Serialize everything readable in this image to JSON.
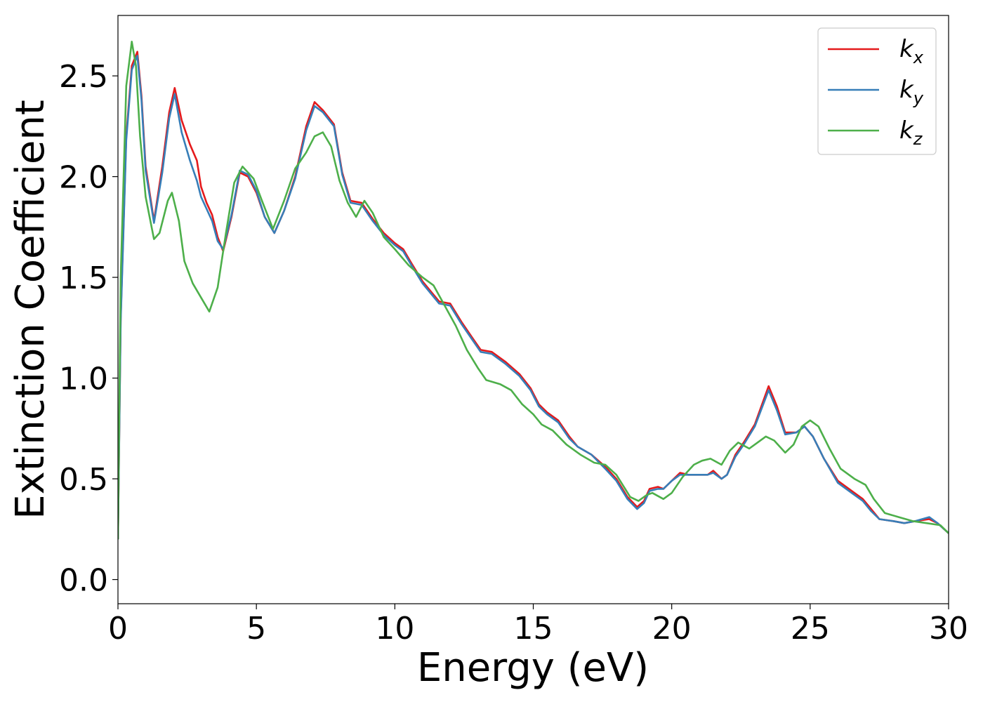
{
  "chart_data": {
    "type": "line",
    "xlabel": "Energy (eV)",
    "ylabel": "Extinction Coefficient",
    "xlim": [
      0,
      30
    ],
    "ylim": [
      -0.12,
      2.8
    ],
    "xticks": [
      "0",
      "5",
      "10",
      "15",
      "20",
      "25",
      "30"
    ],
    "yticks": [
      "0.0",
      "0.5",
      "1.0",
      "1.5",
      "2.0",
      "2.5"
    ],
    "grid": false,
    "legend_position": "top-right",
    "series": [
      {
        "name": "k",
        "subscript": "x",
        "color": "#e41a1c",
        "points": [
          [
            0,
            0.2
          ],
          [
            0.1,
            1.3
          ],
          [
            0.3,
            2.2
          ],
          [
            0.5,
            2.55
          ],
          [
            0.7,
            2.62
          ],
          [
            0.85,
            2.4
          ],
          [
            1.0,
            2.05
          ],
          [
            1.3,
            1.78
          ],
          [
            1.6,
            2.05
          ],
          [
            1.85,
            2.32
          ],
          [
            2.05,
            2.44
          ],
          [
            2.3,
            2.28
          ],
          [
            2.6,
            2.16
          ],
          [
            2.85,
            2.08
          ],
          [
            3.0,
            1.95
          ],
          [
            3.2,
            1.87
          ],
          [
            3.4,
            1.81
          ],
          [
            3.6,
            1.7
          ],
          [
            3.8,
            1.63
          ],
          [
            4.1,
            1.8
          ],
          [
            4.4,
            2.02
          ],
          [
            4.7,
            2.0
          ],
          [
            5.0,
            1.92
          ],
          [
            5.3,
            1.8
          ],
          [
            5.65,
            1.72
          ],
          [
            6.0,
            1.83
          ],
          [
            6.4,
            2.0
          ],
          [
            6.8,
            2.25
          ],
          [
            7.1,
            2.37
          ],
          [
            7.4,
            2.33
          ],
          [
            7.8,
            2.26
          ],
          [
            8.1,
            2.02
          ],
          [
            8.4,
            1.88
          ],
          [
            8.8,
            1.87
          ],
          [
            9.2,
            1.79
          ],
          [
            9.6,
            1.72
          ],
          [
            10.0,
            1.67
          ],
          [
            10.3,
            1.64
          ],
          [
            10.6,
            1.57
          ],
          [
            11.0,
            1.48
          ],
          [
            11.3,
            1.43
          ],
          [
            11.6,
            1.38
          ],
          [
            12.0,
            1.37
          ],
          [
            12.4,
            1.28
          ],
          [
            12.8,
            1.2
          ],
          [
            13.1,
            1.14
          ],
          [
            13.5,
            1.13
          ],
          [
            14.0,
            1.08
          ],
          [
            14.5,
            1.02
          ],
          [
            14.9,
            0.95
          ],
          [
            15.2,
            0.87
          ],
          [
            15.5,
            0.83
          ],
          [
            15.9,
            0.79
          ],
          [
            16.3,
            0.71
          ],
          [
            16.6,
            0.66
          ],
          [
            17.1,
            0.62
          ],
          [
            17.6,
            0.56
          ],
          [
            18.0,
            0.5
          ],
          [
            18.4,
            0.41
          ],
          [
            18.75,
            0.36
          ],
          [
            19.0,
            0.39
          ],
          [
            19.2,
            0.45
          ],
          [
            19.5,
            0.46
          ],
          [
            19.7,
            0.45
          ],
          [
            20.0,
            0.49
          ],
          [
            20.3,
            0.53
          ],
          [
            20.6,
            0.52
          ],
          [
            21.0,
            0.52
          ],
          [
            21.3,
            0.52
          ],
          [
            21.5,
            0.54
          ],
          [
            21.8,
            0.5
          ],
          [
            22.0,
            0.52
          ],
          [
            22.3,
            0.62
          ],
          [
            22.6,
            0.68
          ],
          [
            23.0,
            0.77
          ],
          [
            23.5,
            0.96
          ],
          [
            23.8,
            0.86
          ],
          [
            24.1,
            0.73
          ],
          [
            24.5,
            0.73
          ],
          [
            24.8,
            0.76
          ],
          [
            25.1,
            0.71
          ],
          [
            25.5,
            0.6
          ],
          [
            26.0,
            0.49
          ],
          [
            26.5,
            0.44
          ],
          [
            26.9,
            0.4
          ],
          [
            27.2,
            0.35
          ],
          [
            27.5,
            0.3
          ],
          [
            28.0,
            0.29
          ],
          [
            28.4,
            0.28
          ],
          [
            28.8,
            0.29
          ],
          [
            29.3,
            0.3
          ],
          [
            29.6,
            0.28
          ],
          [
            30.0,
            0.23
          ]
        ]
      },
      {
        "name": "k",
        "subscript": "y",
        "color": "#377eb8",
        "points": [
          [
            0,
            0.2
          ],
          [
            0.1,
            1.28
          ],
          [
            0.3,
            2.18
          ],
          [
            0.5,
            2.53
          ],
          [
            0.7,
            2.6
          ],
          [
            0.85,
            2.38
          ],
          [
            1.0,
            2.03
          ],
          [
            1.3,
            1.77
          ],
          [
            1.6,
            2.02
          ],
          [
            1.85,
            2.29
          ],
          [
            2.05,
            2.41
          ],
          [
            2.3,
            2.22
          ],
          [
            2.6,
            2.08
          ],
          [
            2.85,
            1.98
          ],
          [
            3.0,
            1.9
          ],
          [
            3.2,
            1.84
          ],
          [
            3.4,
            1.78
          ],
          [
            3.6,
            1.68
          ],
          [
            3.8,
            1.64
          ],
          [
            4.1,
            1.81
          ],
          [
            4.4,
            2.03
          ],
          [
            4.7,
            2.01
          ],
          [
            5.0,
            1.93
          ],
          [
            5.3,
            1.8
          ],
          [
            5.65,
            1.72
          ],
          [
            6.0,
            1.83
          ],
          [
            6.4,
            1.99
          ],
          [
            6.8,
            2.23
          ],
          [
            7.1,
            2.35
          ],
          [
            7.4,
            2.32
          ],
          [
            7.8,
            2.25
          ],
          [
            8.1,
            2.01
          ],
          [
            8.4,
            1.87
          ],
          [
            8.8,
            1.86
          ],
          [
            9.2,
            1.78
          ],
          [
            9.6,
            1.71
          ],
          [
            10.0,
            1.66
          ],
          [
            10.3,
            1.63
          ],
          [
            10.6,
            1.56
          ],
          [
            11.0,
            1.47
          ],
          [
            11.3,
            1.42
          ],
          [
            11.6,
            1.37
          ],
          [
            12.0,
            1.36
          ],
          [
            12.4,
            1.27
          ],
          [
            12.8,
            1.19
          ],
          [
            13.1,
            1.13
          ],
          [
            13.5,
            1.12
          ],
          [
            14.0,
            1.07
          ],
          [
            14.5,
            1.01
          ],
          [
            14.9,
            0.94
          ],
          [
            15.2,
            0.86
          ],
          [
            15.5,
            0.82
          ],
          [
            15.9,
            0.78
          ],
          [
            16.3,
            0.7
          ],
          [
            16.6,
            0.66
          ],
          [
            17.1,
            0.62
          ],
          [
            17.6,
            0.55
          ],
          [
            18.0,
            0.49
          ],
          [
            18.4,
            0.4
          ],
          [
            18.75,
            0.35
          ],
          [
            19.0,
            0.38
          ],
          [
            19.2,
            0.44
          ],
          [
            19.5,
            0.45
          ],
          [
            19.7,
            0.45
          ],
          [
            20.0,
            0.49
          ],
          [
            20.3,
            0.52
          ],
          [
            20.6,
            0.52
          ],
          [
            21.0,
            0.52
          ],
          [
            21.3,
            0.52
          ],
          [
            21.5,
            0.53
          ],
          [
            21.8,
            0.5
          ],
          [
            22.0,
            0.52
          ],
          [
            22.3,
            0.61
          ],
          [
            22.6,
            0.67
          ],
          [
            23.0,
            0.76
          ],
          [
            23.5,
            0.94
          ],
          [
            23.8,
            0.84
          ],
          [
            24.1,
            0.72
          ],
          [
            24.5,
            0.73
          ],
          [
            24.8,
            0.76
          ],
          [
            25.1,
            0.71
          ],
          [
            25.5,
            0.6
          ],
          [
            26.0,
            0.48
          ],
          [
            26.5,
            0.43
          ],
          [
            26.9,
            0.39
          ],
          [
            27.2,
            0.34
          ],
          [
            27.5,
            0.3
          ],
          [
            28.0,
            0.29
          ],
          [
            28.4,
            0.28
          ],
          [
            28.8,
            0.29
          ],
          [
            29.3,
            0.31
          ],
          [
            29.6,
            0.28
          ],
          [
            30.0,
            0.23
          ]
        ]
      },
      {
        "name": "k",
        "subscript": "z",
        "color": "#4daf4a",
        "points": [
          [
            0,
            0.2
          ],
          [
            0.1,
            1.5
          ],
          [
            0.3,
            2.45
          ],
          [
            0.5,
            2.67
          ],
          [
            0.65,
            2.55
          ],
          [
            0.8,
            2.2
          ],
          [
            1.0,
            1.9
          ],
          [
            1.3,
            1.69
          ],
          [
            1.5,
            1.72
          ],
          [
            1.8,
            1.88
          ],
          [
            1.95,
            1.92
          ],
          [
            2.2,
            1.78
          ],
          [
            2.4,
            1.58
          ],
          [
            2.7,
            1.47
          ],
          [
            3.0,
            1.4
          ],
          [
            3.3,
            1.33
          ],
          [
            3.6,
            1.45
          ],
          [
            3.9,
            1.72
          ],
          [
            4.2,
            1.97
          ],
          [
            4.5,
            2.05
          ],
          [
            4.9,
            1.99
          ],
          [
            5.2,
            1.88
          ],
          [
            5.6,
            1.74
          ],
          [
            6.0,
            1.88
          ],
          [
            6.4,
            2.04
          ],
          [
            6.8,
            2.12
          ],
          [
            7.1,
            2.2
          ],
          [
            7.4,
            2.22
          ],
          [
            7.7,
            2.15
          ],
          [
            8.0,
            1.98
          ],
          [
            8.3,
            1.87
          ],
          [
            8.6,
            1.8
          ],
          [
            8.9,
            1.88
          ],
          [
            9.2,
            1.82
          ],
          [
            9.6,
            1.7
          ],
          [
            10.0,
            1.64
          ],
          [
            10.5,
            1.56
          ],
          [
            11.0,
            1.5
          ],
          [
            11.4,
            1.46
          ],
          [
            11.8,
            1.36
          ],
          [
            12.2,
            1.26
          ],
          [
            12.6,
            1.14
          ],
          [
            13.0,
            1.05
          ],
          [
            13.3,
            0.99
          ],
          [
            13.8,
            0.97
          ],
          [
            14.2,
            0.94
          ],
          [
            14.6,
            0.87
          ],
          [
            15.0,
            0.82
          ],
          [
            15.3,
            0.77
          ],
          [
            15.7,
            0.74
          ],
          [
            16.2,
            0.67
          ],
          [
            16.7,
            0.62
          ],
          [
            17.2,
            0.58
          ],
          [
            17.6,
            0.57
          ],
          [
            18.0,
            0.52
          ],
          [
            18.5,
            0.41
          ],
          [
            18.8,
            0.39
          ],
          [
            19.1,
            0.42
          ],
          [
            19.3,
            0.43
          ],
          [
            19.7,
            0.4
          ],
          [
            20.0,
            0.43
          ],
          [
            20.4,
            0.51
          ],
          [
            20.8,
            0.57
          ],
          [
            21.1,
            0.59
          ],
          [
            21.4,
            0.6
          ],
          [
            21.8,
            0.57
          ],
          [
            22.1,
            0.64
          ],
          [
            22.4,
            0.68
          ],
          [
            22.8,
            0.65
          ],
          [
            23.1,
            0.68
          ],
          [
            23.4,
            0.71
          ],
          [
            23.7,
            0.69
          ],
          [
            24.1,
            0.63
          ],
          [
            24.4,
            0.67
          ],
          [
            24.7,
            0.76
          ],
          [
            25.0,
            0.79
          ],
          [
            25.3,
            0.76
          ],
          [
            25.7,
            0.65
          ],
          [
            26.1,
            0.55
          ],
          [
            26.6,
            0.5
          ],
          [
            27.0,
            0.47
          ],
          [
            27.3,
            0.4
          ],
          [
            27.7,
            0.33
          ],
          [
            28.2,
            0.31
          ],
          [
            28.7,
            0.29
          ],
          [
            29.2,
            0.28
          ],
          [
            29.7,
            0.27
          ],
          [
            30.0,
            0.23
          ]
        ]
      }
    ]
  }
}
